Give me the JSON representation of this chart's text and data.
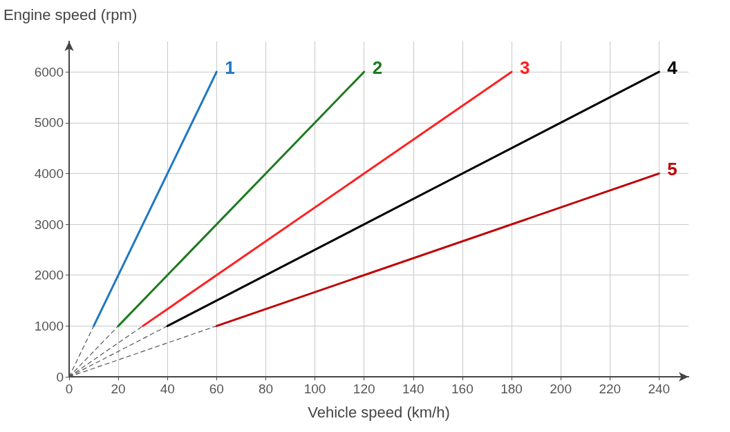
{
  "chart_data": {
    "type": "line",
    "xlabel": "Vehicle speed (km/h)",
    "ylabel": "Engine speed (rpm)",
    "xlim": [
      0,
      252
    ],
    "ylim": [
      0,
      6600
    ],
    "xticks": [
      0,
      20,
      40,
      60,
      80,
      100,
      120,
      140,
      160,
      180,
      200,
      220,
      240
    ],
    "yticks": [
      0,
      1000,
      2000,
      3000,
      4000,
      5000,
      6000
    ],
    "grid": true,
    "marker": "none",
    "line_style": "solid",
    "series": [
      {
        "name": "1",
        "color": "#1f77c4",
        "x": [
          10,
          60
        ],
        "values": [
          1000,
          6000
        ]
      },
      {
        "name": "2",
        "color": "#1e7a1e",
        "x": [
          20,
          120
        ],
        "values": [
          1000,
          6000
        ]
      },
      {
        "name": "3",
        "color": "#ff2020",
        "x": [
          30,
          180
        ],
        "values": [
          1000,
          6000
        ]
      },
      {
        "name": "4",
        "color": "#000000",
        "x": [
          40,
          240
        ],
        "values": [
          1000,
          6000
        ]
      },
      {
        "name": "5",
        "color": "#c00000",
        "x": [
          60,
          240
        ],
        "values": [
          1000,
          4000
        ]
      },
      {
        "color": "#555555",
        "line_style": "dashed",
        "x": [
          0,
          10
        ],
        "values": [
          0,
          1000
        ]
      },
      {
        "color": "#555555",
        "line_style": "dashed",
        "x": [
          0,
          20
        ],
        "values": [
          0,
          1000
        ]
      },
      {
        "color": "#555555",
        "line_style": "dashed",
        "x": [
          0,
          30
        ],
        "values": [
          0,
          1000
        ]
      },
      {
        "color": "#555555",
        "line_style": "dashed",
        "x": [
          0,
          40
        ],
        "values": [
          0,
          1000
        ]
      },
      {
        "color": "#555555",
        "line_style": "dashed",
        "x": [
          0,
          60
        ],
        "values": [
          0,
          1000
        ]
      }
    ]
  }
}
